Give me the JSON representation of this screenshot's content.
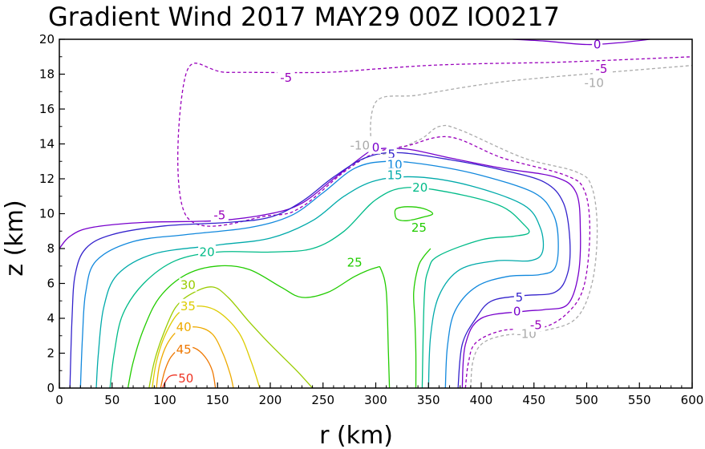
{
  "chart_data": {
    "type": "contour",
    "title": "Gradient Wind 2017 MAY29 00Z   IO0217",
    "xlabel": "r (km)",
    "ylabel": "z (km)",
    "xlim": [
      0,
      600
    ],
    "ylim": [
      0,
      20
    ],
    "xticks": [
      "0",
      "50",
      "100",
      "150",
      "200",
      "250",
      "300",
      "350",
      "400",
      "450",
      "500",
      "550",
      "600"
    ],
    "yticks": [
      "0",
      "2",
      "4",
      "6",
      "8",
      "10",
      "12",
      "14",
      "16",
      "18",
      "20"
    ],
    "grid": false,
    "contours": [
      {
        "level": "-10",
        "color": "#aaaaaa",
        "dashed": true,
        "points": [
          [
            390,
            0
          ],
          [
            392,
            1.5
          ],
          [
            400,
            2.5
          ],
          [
            420,
            3
          ],
          [
            460,
            3.3
          ],
          [
            490,
            4
          ],
          [
            505,
            6
          ],
          [
            510,
            9
          ],
          [
            505,
            11.5
          ],
          [
            490,
            12.4
          ],
          [
            440,
            13.2
          ],
          [
            380,
            14.8
          ],
          [
            360,
            15
          ],
          [
            340,
            14.2
          ],
          [
            300,
            13.5
          ],
          [
            300,
            16.4
          ],
          [
            340,
            16.8
          ],
          [
            400,
            17.4
          ],
          [
            460,
            17.8
          ],
          [
            600,
            18.5
          ]
        ],
        "labels": [
          {
            "text": "-10",
            "x": 443,
            "y": 3.1
          },
          {
            "text": "-10",
            "x": 285,
            "y": 13.9
          },
          {
            "text": "-10",
            "x": 507,
            "y": 17.5
          }
        ]
      },
      {
        "level": "-5",
        "color": "#9900bb",
        "dashed": true,
        "points": [
          [
            385,
            0
          ],
          [
            388,
            1.5
          ],
          [
            395,
            2.6
          ],
          [
            420,
            3.3
          ],
          [
            460,
            3.5
          ],
          [
            485,
            4.5
          ],
          [
            498,
            6
          ],
          [
            503,
            9
          ],
          [
            498,
            11.3
          ],
          [
            480,
            12.2
          ],
          [
            420,
            13.2
          ],
          [
            370,
            14.4
          ],
          [
            330,
            13.9
          ],
          [
            300,
            13.5
          ],
          [
            270,
            12.4
          ],
          [
            230,
            10.4
          ],
          [
            200,
            9.9
          ],
          [
            120,
            9.9
          ],
          [
            120,
            18
          ],
          [
            160,
            18.1
          ],
          [
            250,
            18.1
          ],
          [
            300,
            18.3
          ],
          [
            350,
            18.5
          ],
          [
            400,
            18.6
          ],
          [
            480,
            18.7
          ],
          [
            600,
            19
          ]
        ],
        "labels": [
          {
            "text": "-5",
            "x": 452,
            "y": 3.6
          },
          {
            "text": "-5",
            "x": 152,
            "y": 9.9
          },
          {
            "text": "-5",
            "x": 215,
            "y": 17.8
          },
          {
            "text": "-5",
            "x": 514,
            "y": 18.3
          }
        ]
      },
      {
        "level": "0",
        "color": "#7700cc",
        "dashed": false,
        "points": [
          [
            0,
            8
          ],
          [
            10,
            8.7
          ],
          [
            30,
            9.2
          ],
          [
            80,
            9.5
          ],
          [
            150,
            9.6
          ],
          [
            200,
            10
          ],
          [
            230,
            10.6
          ],
          [
            260,
            12
          ],
          [
            290,
            13.4
          ],
          [
            300,
            13.7
          ],
          [
            330,
            13.7
          ],
          [
            370,
            13.2
          ],
          [
            420,
            12.6
          ],
          [
            470,
            12.1
          ],
          [
            490,
            11.2
          ],
          [
            494,
            9
          ],
          [
            492,
            6.5
          ],
          [
            482,
            4.8
          ],
          [
            460,
            4.5
          ],
          [
            440,
            4.4
          ],
          [
            400,
            4
          ],
          [
            385,
            2.5
          ],
          [
            382,
            0
          ]
        ],
        "labels": [
          {
            "text": "0",
            "x": 434,
            "y": 4.4
          },
          {
            "text": "0",
            "x": 300,
            "y": 13.8
          },
          {
            "text": "0",
            "x": 510,
            "y": 19.7
          }
        ]
      },
      {
        "level": "0",
        "color": "#7700cc",
        "dashed": false,
        "points": [
          [
            430,
            20
          ],
          [
            460,
            19.9
          ],
          [
            500,
            19.7
          ],
          [
            530,
            19.8
          ],
          [
            560,
            20
          ]
        ],
        "labels": []
      },
      {
        "level": "5",
        "color": "#3322cc",
        "dashed": false,
        "points": [
          [
            10,
            0
          ],
          [
            12,
            4
          ],
          [
            15,
            6.5
          ],
          [
            25,
            8
          ],
          [
            50,
            8.8
          ],
          [
            100,
            9.3
          ],
          [
            160,
            9.5
          ],
          [
            200,
            9.8
          ],
          [
            230,
            10.7
          ],
          [
            260,
            12.1
          ],
          [
            290,
            13.2
          ],
          [
            320,
            13.5
          ],
          [
            370,
            13.1
          ],
          [
            420,
            12.5
          ],
          [
            460,
            11.8
          ],
          [
            478,
            10.6
          ],
          [
            484,
            8.5
          ],
          [
            482,
            6.6
          ],
          [
            470,
            5.5
          ],
          [
            440,
            5.3
          ],
          [
            410,
            5
          ],
          [
            395,
            4
          ],
          [
            382,
            2.5
          ],
          [
            378,
            0
          ]
        ],
        "labels": [
          {
            "text": "5",
            "x": 436,
            "y": 5.2
          },
          {
            "text": "5",
            "x": 315,
            "y": 13.4
          }
        ]
      },
      {
        "level": "10",
        "color": "#1188dd",
        "dashed": false,
        "points": [
          [
            20,
            0
          ],
          [
            22,
            3
          ],
          [
            25,
            5.5
          ],
          [
            35,
            7.3
          ],
          [
            70,
            8.4
          ],
          [
            120,
            8.8
          ],
          [
            180,
            9.2
          ],
          [
            220,
            9.9
          ],
          [
            250,
            11.2
          ],
          [
            280,
            12.6
          ],
          [
            310,
            13
          ],
          [
            350,
            12.8
          ],
          [
            400,
            12.2
          ],
          [
            450,
            11.2
          ],
          [
            468,
            10
          ],
          [
            473,
            8.5
          ],
          [
            470,
            6.9
          ],
          [
            455,
            6.5
          ],
          [
            425,
            6.4
          ],
          [
            395,
            5.8
          ],
          [
            375,
            4.4
          ],
          [
            368,
            2.4
          ],
          [
            366,
            0
          ]
        ],
        "labels": [
          {
            "text": "10",
            "x": 318,
            "y": 12.8
          }
        ]
      },
      {
        "level": "15",
        "color": "#00aaaa",
        "dashed": false,
        "points": [
          [
            35,
            0
          ],
          [
            37,
            2
          ],
          [
            42,
            4.6
          ],
          [
            55,
            6.5
          ],
          [
            90,
            7.7
          ],
          [
            150,
            8.2
          ],
          [
            200,
            8.6
          ],
          [
            240,
            9.6
          ],
          [
            270,
            11
          ],
          [
            300,
            11.9
          ],
          [
            340,
            12.1
          ],
          [
            390,
            11.6
          ],
          [
            440,
            10.5
          ],
          [
            456,
            9.2
          ],
          [
            458,
            7.8
          ],
          [
            446,
            7.3
          ],
          [
            415,
            7.3
          ],
          [
            380,
            6.8
          ],
          [
            360,
            5.3
          ],
          [
            352,
            3
          ],
          [
            350,
            0
          ]
        ],
        "labels": [
          {
            "text": "15",
            "x": 318,
            "y": 12.2
          }
        ]
      },
      {
        "level": "20",
        "color": "#00bb88",
        "dashed": false,
        "points": [
          [
            48,
            0
          ],
          [
            52,
            2
          ],
          [
            60,
            4.2
          ],
          [
            80,
            6
          ],
          [
            110,
            7.3
          ],
          [
            150,
            7.8
          ],
          [
            200,
            7.8
          ],
          [
            240,
            8
          ],
          [
            270,
            9
          ],
          [
            300,
            10.8
          ],
          [
            330,
            11.5
          ],
          [
            380,
            11.1
          ],
          [
            420,
            10.4
          ],
          [
            440,
            9.4
          ],
          [
            445,
            8.9
          ],
          [
            430,
            8.7
          ],
          [
            400,
            8.5
          ],
          [
            360,
            7.6
          ],
          [
            350,
            6.8
          ],
          [
            346,
            5.2
          ],
          [
            344,
            0
          ]
        ],
        "labels": [
          {
            "text": "20",
            "x": 140,
            "y": 7.8
          },
          {
            "text": "20",
            "x": 342,
            "y": 11.5
          }
        ]
      },
      {
        "level": "25",
        "color": "#22cc00",
        "dashed": false,
        "points": [
          [
            65,
            0
          ],
          [
            70,
            1.5
          ],
          [
            80,
            3.4
          ],
          [
            95,
            5.2
          ],
          [
            120,
            6.5
          ],
          [
            150,
            7
          ],
          [
            180,
            6.8
          ],
          [
            210,
            5.8
          ],
          [
            230,
            5.2
          ],
          [
            255,
            5.5
          ],
          [
            280,
            6.4
          ],
          [
            300,
            6.9
          ],
          [
            305,
            6.8
          ],
          [
            310,
            5.5
          ],
          [
            312,
            2
          ],
          [
            313,
            0
          ]
        ],
        "labels": [
          {
            "text": "25",
            "x": 280,
            "y": 7.2
          }
        ]
      },
      {
        "level": "25",
        "color": "#22cc00",
        "dashed": false,
        "points": [
          [
            318,
            10.1
          ],
          [
            320,
            9.7
          ],
          [
            330,
            9.6
          ],
          [
            345,
            9.8
          ],
          [
            354,
            10
          ],
          [
            345,
            10.3
          ],
          [
            330,
            10.4
          ],
          [
            320,
            10.3
          ],
          [
            318,
            10.1
          ]
        ],
        "labels": [
          {
            "text": "25",
            "x": 341,
            "y": 9.2
          }
        ]
      },
      {
        "level": "25",
        "color": "#22cc00",
        "dashed": false,
        "points": [
          [
            338,
            0
          ],
          [
            338,
            2
          ],
          [
            337,
            4
          ],
          [
            336,
            5.5
          ],
          [
            340,
            6.9
          ],
          [
            345,
            7.5
          ],
          [
            352,
            8
          ]
        ],
        "labels": []
      },
      {
        "level": "30",
        "color": "#99cc00",
        "dashed": false,
        "points": [
          [
            85,
            0
          ],
          [
            90,
            1.5
          ],
          [
            98,
            3
          ],
          [
            110,
            4.6
          ],
          [
            125,
            5.4
          ],
          [
            145,
            5.8
          ],
          [
            160,
            5.2
          ],
          [
            180,
            3.8
          ],
          [
            200,
            2.5
          ],
          [
            225,
            1
          ],
          [
            240,
            0
          ]
        ],
        "labels": [
          {
            "text": "30",
            "x": 122,
            "y": 5.9
          }
        ]
      },
      {
        "level": "35",
        "color": "#ddcc00",
        "dashed": false,
        "points": [
          [
            88,
            0
          ],
          [
            92,
            1.5
          ],
          [
            100,
            3
          ],
          [
            113,
            4.3
          ],
          [
            130,
            4.7
          ],
          [
            150,
            4.4
          ],
          [
            170,
            3.2
          ],
          [
            182,
            1.5
          ],
          [
            190,
            0
          ]
        ],
        "labels": [
          {
            "text": "35",
            "x": 122,
            "y": 4.7
          }
        ]
      },
      {
        "level": "40",
        "color": "#eeaa00",
        "dashed": false,
        "points": [
          [
            92,
            0
          ],
          [
            95,
            1.3
          ],
          [
            102,
            2.5
          ],
          [
            113,
            3.3
          ],
          [
            130,
            3.5
          ],
          [
            145,
            3.1
          ],
          [
            155,
            2
          ],
          [
            162,
            0.8
          ],
          [
            165,
            0
          ]
        ],
        "labels": [
          {
            "text": "40",
            "x": 118,
            "y": 3.5
          }
        ]
      },
      {
        "level": "45",
        "color": "#ee7700",
        "dashed": false,
        "points": [
          [
            96,
            0
          ],
          [
            100,
            1
          ],
          [
            106,
            1.8
          ],
          [
            116,
            2.3
          ],
          [
            128,
            2.3
          ],
          [
            138,
            1.8
          ],
          [
            145,
            1
          ],
          [
            148,
            0
          ]
        ],
        "labels": [
          {
            "text": "45",
            "x": 118,
            "y": 2.2
          }
        ]
      },
      {
        "level": "50",
        "color": "#ee3322",
        "dashed": false,
        "points": [
          [
            98,
            0
          ],
          [
            100,
            0.3
          ],
          [
            104,
            0.65
          ],
          [
            110,
            0.75
          ],
          [
            116,
            0.65
          ]
        ],
        "labels": [
          {
            "text": "50",
            "x": 120,
            "y": 0.55
          }
        ]
      }
    ]
  }
}
